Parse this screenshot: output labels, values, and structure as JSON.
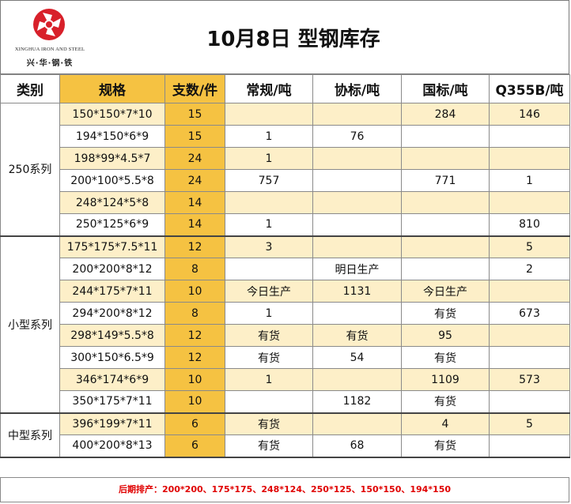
{
  "header": {
    "title": "10月8日 型钢库存",
    "logo_en": "XINGHUA IRON AND STEEL",
    "logo_cn": "兴·华·钢·铁"
  },
  "columns": [
    "类别",
    "规格",
    "支数/件",
    "常规/吨",
    "协标/吨",
    "国标/吨",
    "Q355B/吨"
  ],
  "sections": [
    {
      "name": "250系列",
      "rows": [
        {
          "spec": "150*150*7*10",
          "qty": "15",
          "changgui": "",
          "xiebiao": "",
          "guobiao": "284",
          "q355b": "146"
        },
        {
          "spec": "194*150*6*9",
          "qty": "15",
          "changgui": "1",
          "xiebiao": "76",
          "guobiao": "",
          "q355b": ""
        },
        {
          "spec": "198*99*4.5*7",
          "qty": "24",
          "changgui": "1",
          "xiebiao": "",
          "guobiao": "",
          "q355b": ""
        },
        {
          "spec": "200*100*5.5*8",
          "qty": "24",
          "changgui": "757",
          "xiebiao": "",
          "guobiao": "771",
          "q355b": "1"
        },
        {
          "spec": "248*124*5*8",
          "qty": "14",
          "changgui": "",
          "xiebiao": "",
          "guobiao": "",
          "q355b": ""
        },
        {
          "spec": "250*125*6*9",
          "qty": "14",
          "changgui": "1",
          "xiebiao": "",
          "guobiao": "",
          "q355b": "810"
        }
      ]
    },
    {
      "name": "小型系列",
      "rows": [
        {
          "spec": "175*175*7.5*11",
          "qty": "12",
          "changgui": "3",
          "xiebiao": "",
          "guobiao": "",
          "q355b": "5"
        },
        {
          "spec": "200*200*8*12",
          "qty": "8",
          "changgui": "",
          "xiebiao": "明日生产",
          "guobiao": "",
          "q355b": "2"
        },
        {
          "spec": "244*175*7*11",
          "qty": "10",
          "changgui": "今日生产",
          "xiebiao": "1131",
          "guobiao": "今日生产",
          "q355b": ""
        },
        {
          "spec": "294*200*8*12",
          "qty": "8",
          "changgui": "1",
          "xiebiao": "",
          "guobiao": "有货",
          "q355b": "673"
        },
        {
          "spec": "298*149*5.5*8",
          "qty": "12",
          "changgui": "有货",
          "xiebiao": "有货",
          "guobiao": "95",
          "q355b": ""
        },
        {
          "spec": "300*150*6.5*9",
          "qty": "12",
          "changgui": "有货",
          "xiebiao": "54",
          "guobiao": "有货",
          "q355b": ""
        },
        {
          "spec": "346*174*6*9",
          "qty": "10",
          "changgui": "1",
          "xiebiao": "",
          "guobiao": "1109",
          "q355b": "573"
        },
        {
          "spec": "350*175*7*11",
          "qty": "10",
          "changgui": "",
          "xiebiao": "1182",
          "guobiao": "有货",
          "q355b": ""
        }
      ]
    },
    {
      "name": "中型系列",
      "rows": [
        {
          "spec": "396*199*7*11",
          "qty": "6",
          "changgui": "有货",
          "xiebiao": "",
          "guobiao": "4",
          "q355b": "5"
        },
        {
          "spec": "400*200*8*13",
          "qty": "6",
          "changgui": "有货",
          "xiebiao": "68",
          "guobiao": "有货",
          "q355b": ""
        }
      ]
    }
  ],
  "footer": "后期排产：200*200、175*175、248*124、250*125、150*150、194*150",
  "colors": {
    "gold": "#f5c242",
    "light": "#fdefc8",
    "red": "#e00000",
    "logo_red": "#d8202a"
  }
}
